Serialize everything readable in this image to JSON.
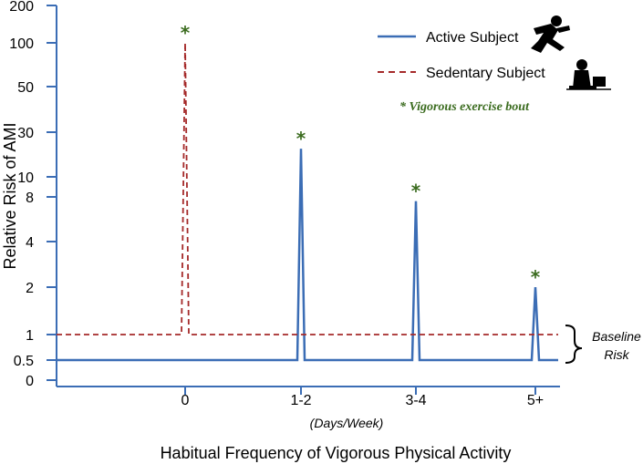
{
  "chart_data": {
    "type": "line",
    "title": "",
    "xlabel": "Habitual Frequency of Vigorous Physical Activity",
    "xlabel_unit": "(Days/Week)",
    "ylabel": "Relative Risk of AMI",
    "y_scale": "nonlinear",
    "y_ticks": [
      "0",
      "0.5",
      "1",
      "2",
      "4",
      "8",
      "10",
      "30",
      "50",
      "100",
      "200"
    ],
    "y_tick_values": [
      0,
      0.5,
      1,
      2,
      4,
      8,
      10,
      30,
      50,
      100,
      200
    ],
    "categories": [
      "0",
      "1-2",
      "3-4",
      "5+"
    ],
    "series": [
      {
        "name": "Active Subject",
        "style": "solid",
        "color": "#3b6db5",
        "baseline": 0.5,
        "peaks": [
          {
            "category": "1-2",
            "value": 20
          },
          {
            "category": "3-4",
            "value": 7.5
          },
          {
            "category": "5+",
            "value": 2
          }
        ]
      },
      {
        "name": "Sedentary Subject",
        "style": "dashed",
        "color": "#a52a2a",
        "baseline": 1,
        "peaks": [
          {
            "category": "0",
            "value": 100
          }
        ]
      }
    ],
    "annotations": {
      "star_symbol": "*",
      "star_note": "* Vigorous exercise bout",
      "bracket_label_line1": "Baseline",
      "bracket_label_line2": "Risk"
    },
    "legend_position": "top-right",
    "legend_icons": [
      "runner-icon",
      "person-at-desk-icon"
    ],
    "colors": {
      "active": "#3b6db5",
      "sedentary": "#a52a2a",
      "star": "#3a6b1e"
    }
  }
}
